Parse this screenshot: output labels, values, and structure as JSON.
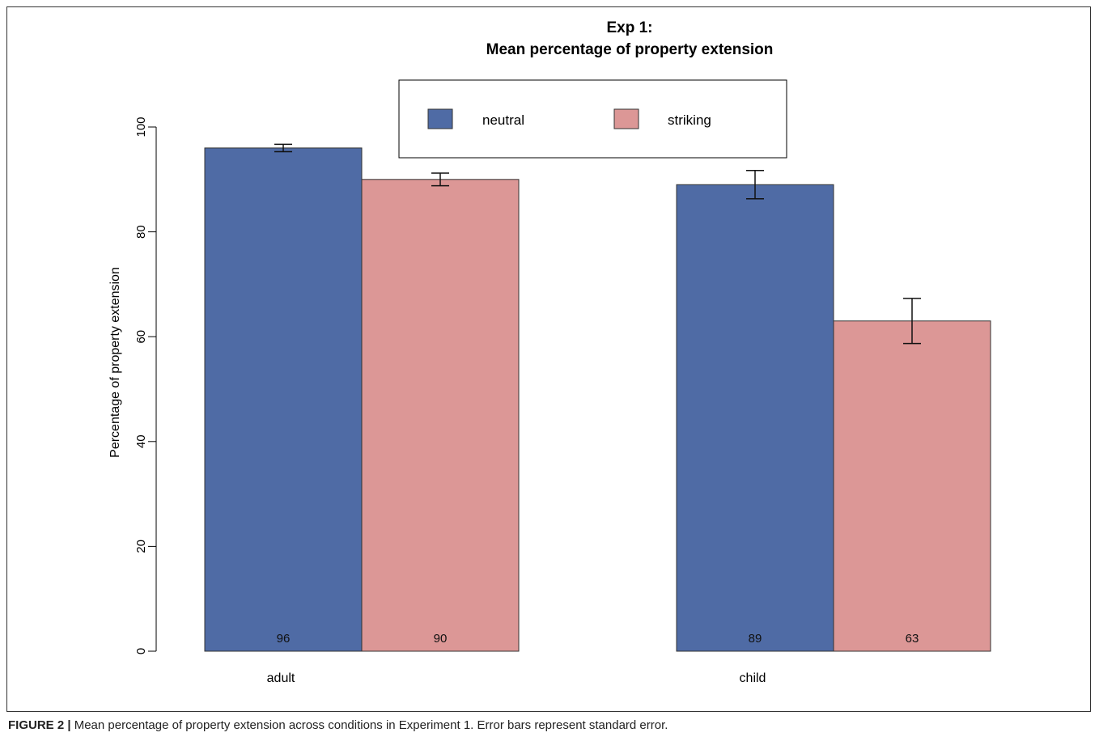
{
  "chart_data": {
    "type": "bar",
    "title_line1": "Exp 1:",
    "title_line2": "Mean percentage of property extension",
    "ylabel": "Percentage of property extension",
    "xlabel": "",
    "categories": [
      "adult",
      "child"
    ],
    "series": [
      {
        "name": "neutral",
        "color": "#4f6ba5",
        "values": [
          96,
          89
        ],
        "value_labels": [
          "96",
          "89"
        ],
        "error": [
          0.7,
          2.7
        ]
      },
      {
        "name": "striking",
        "color": "#dc9796",
        "values": [
          90,
          63
        ],
        "value_labels": [
          "90",
          "63"
        ],
        "error": [
          1.2,
          4.3
        ]
      }
    ],
    "ylim": [
      0,
      100
    ],
    "yticks": [
      0,
      20,
      40,
      60,
      80,
      100
    ],
    "ytick_labels": [
      "0",
      "20",
      "40",
      "60",
      "80",
      "100"
    ],
    "legend_position": "top-center",
    "grid": false
  },
  "caption": {
    "label": "FIGURE 2 |",
    "text": " Mean percentage of property extension across conditions in Experiment 1. Error bars represent standard error."
  }
}
